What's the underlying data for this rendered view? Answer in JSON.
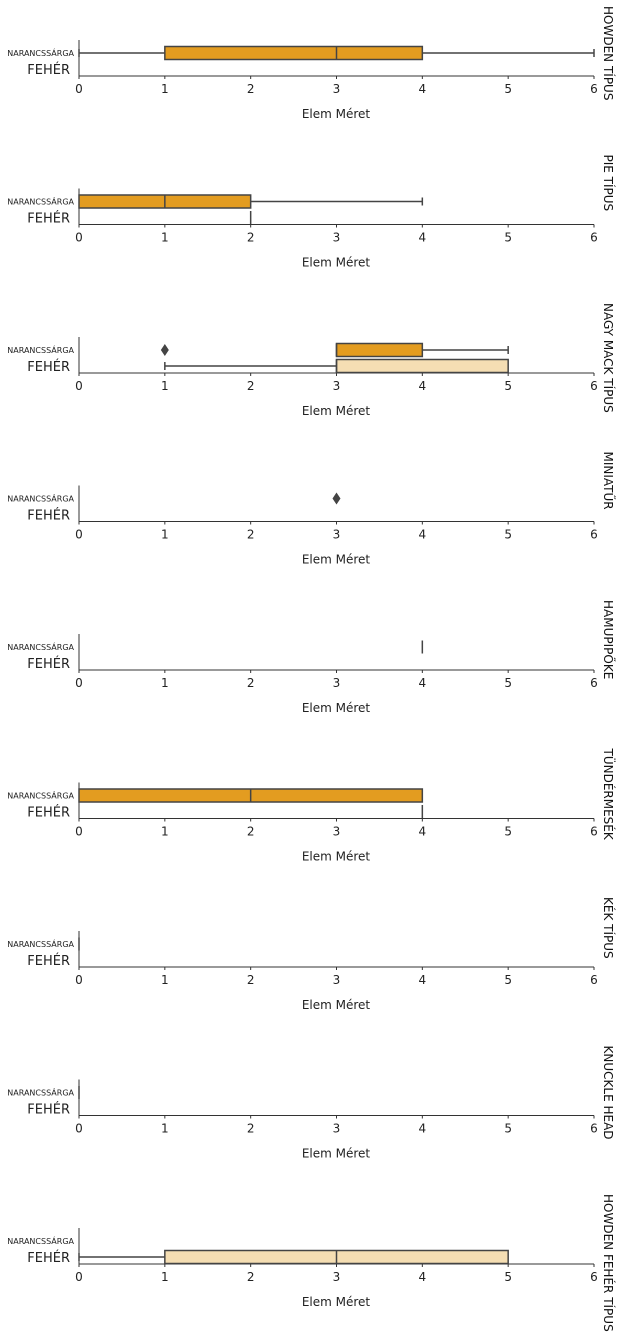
{
  "chart_data": [
    {
      "type": "boxplot",
      "title": "HOWDEN TÍPUS",
      "xlabel": "Elem Méret",
      "xlim": [
        0,
        6
      ],
      "categories": [
        "NARANCSSÁRGA",
        "FEHÉR"
      ],
      "xticks": [
        0,
        1,
        2,
        3,
        4,
        5,
        6
      ],
      "boxes": [
        {
          "category": "NARANCSSÁRGA",
          "color": "#E39C20",
          "whisker_low": 0,
          "q1": 1,
          "median": 3,
          "q3": 4,
          "whisker_high": 6,
          "outliers": []
        }
      ]
    },
    {
      "type": "boxplot",
      "title": "PIE TÍPUS",
      "xlabel": "Elem Méret",
      "xlim": [
        0,
        6
      ],
      "categories": [
        "NARANCSSÁRGA",
        "FEHÉR"
      ],
      "xticks": [
        0,
        1,
        2,
        3,
        4,
        5,
        6
      ],
      "boxes": [
        {
          "category": "NARANCSSÁRGA",
          "color": "#E39C20",
          "whisker_low": 0,
          "q1": 0,
          "median": 1,
          "q3": 2,
          "whisker_high": 4,
          "outliers": []
        },
        {
          "category": "FEHÉR",
          "color": "#F5DEB3",
          "whisker_low": 2,
          "q1": 2,
          "median": 2,
          "q3": 2,
          "whisker_high": 2,
          "outliers": []
        }
      ]
    },
    {
      "type": "boxplot",
      "title": "NAGY MACK TÍPUS",
      "xlabel": "Elem Méret",
      "xlim": [
        0,
        6
      ],
      "categories": [
        "NARANCSSÁRGA",
        "FEHÉR"
      ],
      "xticks": [
        0,
        1,
        2,
        3,
        4,
        5,
        6
      ],
      "boxes": [
        {
          "category": "NARANCSSÁRGA",
          "color": "#E39C20",
          "whisker_low": 3,
          "q1": 3,
          "median": 3,
          "q3": 4,
          "whisker_high": 5,
          "outliers": [
            1
          ]
        },
        {
          "category": "FEHÉR",
          "color": "#F5DEB3",
          "whisker_low": 1,
          "q1": 3,
          "median": 3,
          "q3": 5,
          "whisker_high": 5,
          "outliers": []
        }
      ]
    },
    {
      "type": "boxplot",
      "title": "MINIATŰR",
      "xlabel": "Elem Méret",
      "xlim": [
        0,
        6
      ],
      "categories": [
        "NARANCSSÁRGA",
        "FEHÉR"
      ],
      "xticks": [
        0,
        1,
        2,
        3,
        4,
        5,
        6
      ],
      "boxes": [
        {
          "category": "NARANCSSÁRGA",
          "color": "#E39C20",
          "whisker_low": null,
          "q1": null,
          "median": null,
          "q3": null,
          "whisker_high": null,
          "outliers": [
            3
          ]
        }
      ]
    },
    {
      "type": "boxplot",
      "title": "HAMUPIPŐKE",
      "xlabel": "Elem Méret",
      "xlim": [
        0,
        6
      ],
      "categories": [
        "NARANCSSÁRGA",
        "FEHÉR"
      ],
      "xticks": [
        0,
        1,
        2,
        3,
        4,
        5,
        6
      ],
      "boxes": [
        {
          "category": "NARANCSSÁRGA",
          "color": "#E39C20",
          "whisker_low": 4,
          "q1": 4,
          "median": 4,
          "q3": 4,
          "whisker_high": 4,
          "outliers": []
        }
      ]
    },
    {
      "type": "boxplot",
      "title": "TÜNDÉRMESÉK",
      "xlabel": "Elem Méret",
      "xlim": [
        0,
        6
      ],
      "categories": [
        "NARANCSSÁRGA",
        "FEHÉR"
      ],
      "xticks": [
        0,
        1,
        2,
        3,
        4,
        5,
        6
      ],
      "boxes": [
        {
          "category": "NARANCSSÁRGA",
          "color": "#E39C20",
          "whisker_low": 0,
          "q1": 0,
          "median": 2,
          "q3": 4,
          "whisker_high": 4,
          "outliers": []
        },
        {
          "category": "FEHÉR",
          "color": "#F5DEB3",
          "whisker_low": 4,
          "q1": 4,
          "median": 4,
          "q3": 4,
          "whisker_high": 4,
          "outliers": []
        }
      ]
    },
    {
      "type": "boxplot",
      "title": "KÉK TÍPUS",
      "xlabel": "Elem Méret",
      "xlim": [
        0,
        6
      ],
      "categories": [
        "NARANCSSÁRGA",
        "FEHÉR"
      ],
      "xticks": [
        0,
        1,
        2,
        3,
        4,
        5,
        6
      ],
      "boxes": [
        {
          "category": "NARANCSSÁRGA",
          "color": "#E39C20",
          "whisker_low": 0,
          "q1": 0,
          "median": 0,
          "q3": 0,
          "whisker_high": 0,
          "outliers": []
        }
      ]
    },
    {
      "type": "boxplot",
      "title": "KNUCKLE HEAD",
      "xlabel": "Elem Méret",
      "xlim": [
        0,
        6
      ],
      "categories": [
        "NARANCSSÁRGA",
        "FEHÉR"
      ],
      "xticks": [
        0,
        1,
        2,
        3,
        4,
        5,
        6
      ],
      "boxes": [
        {
          "category": "NARANCSSÁRGA",
          "color": "#E39C20",
          "whisker_low": 0,
          "q1": 0,
          "median": 0,
          "q3": 0,
          "whisker_high": 0,
          "outliers": []
        }
      ]
    },
    {
      "type": "boxplot",
      "title": "HOWDEN FEHÉR TÍPUS",
      "xlabel": "Elem Méret",
      "xlim": [
        0,
        6
      ],
      "categories": [
        "NARANCSSÁRGA",
        "FEHÉR"
      ],
      "xticks": [
        0,
        1,
        2,
        3,
        4,
        5,
        6
      ],
      "boxes": [
        {
          "category": "FEHÉR",
          "color": "#F5DEB3",
          "whisker_low": 0,
          "q1": 1,
          "median": 3,
          "q3": 5,
          "whisker_high": 5,
          "outliers": []
        }
      ]
    }
  ]
}
